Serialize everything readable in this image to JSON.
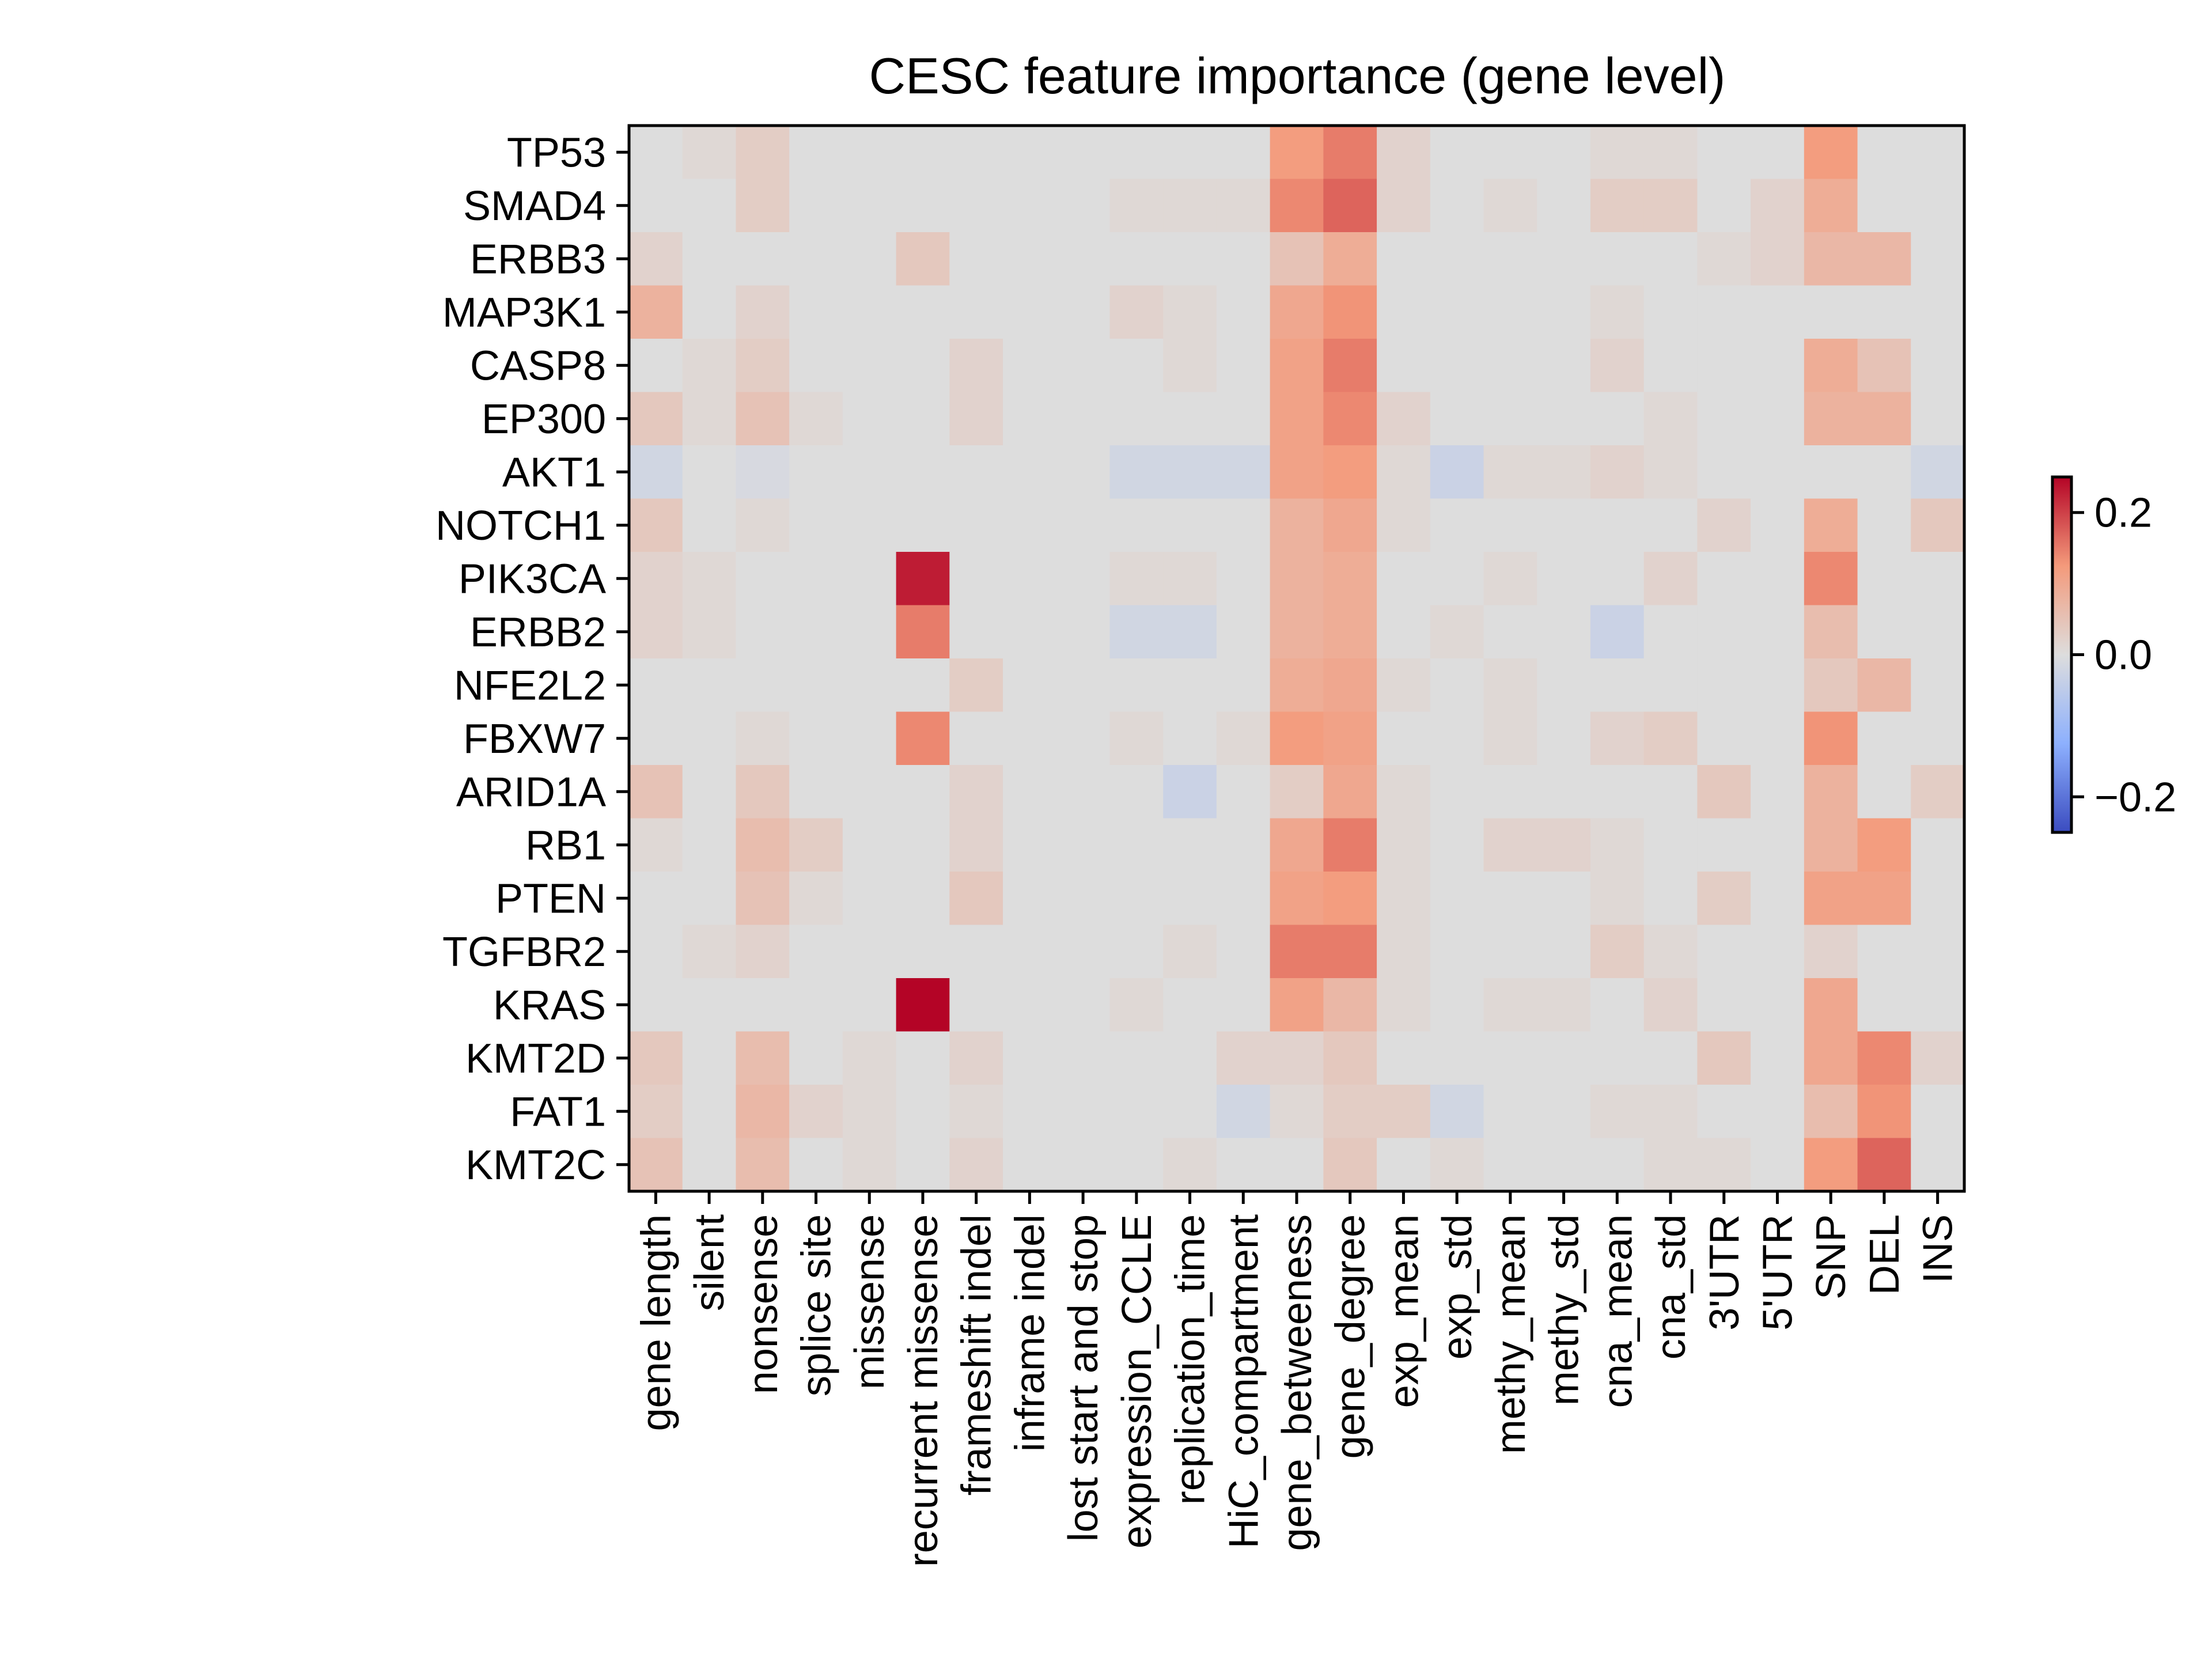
{
  "chart_data": {
    "type": "heatmap",
    "title": "CESC feature importance (gene level)",
    "xlabel": "",
    "ylabel": "",
    "x_categories": [
      "gene length",
      "silent",
      "nonsense",
      "splice site",
      "missense",
      "recurrent missense",
      "frameshift indel",
      "inframe indel",
      "lost start and stop",
      "expression_CCLE",
      "replication_time",
      "HiC_compartment",
      "gene_betweeness",
      "gene_degree",
      "exp_mean",
      "exp_std",
      "methy_mean",
      "methy_std",
      "cna_mean",
      "cna_std",
      "3'UTR",
      "5'UTR",
      "SNP",
      "DEL",
      "INS"
    ],
    "y_categories": [
      "TP53",
      "SMAD4",
      "ERBB3",
      "MAP3K1",
      "CASP8",
      "EP300",
      "AKT1",
      "NOTCH1",
      "PIK3CA",
      "ERBB2",
      "NFE2L2",
      "FBXW7",
      "ARID1A",
      "RB1",
      "PTEN",
      "TGFBR2",
      "KRAS",
      "KMT2D",
      "FAT1",
      "KMT2C"
    ],
    "values": [
      [
        0.0,
        0.01,
        0.03,
        0.0,
        0.0,
        0.0,
        0.0,
        0.0,
        0.0,
        0.0,
        0.0,
        0.0,
        0.12,
        0.15,
        0.02,
        0.0,
        0.0,
        0.0,
        0.01,
        0.01,
        0.0,
        0.0,
        0.12,
        0.0,
        0.0
      ],
      [
        0.0,
        0.0,
        0.03,
        0.0,
        0.0,
        0.0,
        0.0,
        0.0,
        0.0,
        0.01,
        0.01,
        0.01,
        0.14,
        0.17,
        0.02,
        0.0,
        0.01,
        0.0,
        0.03,
        0.03,
        0.0,
        0.02,
        0.09,
        0.0,
        0.0
      ],
      [
        0.02,
        0.0,
        0.0,
        0.0,
        0.0,
        0.04,
        0.0,
        0.0,
        0.0,
        0.0,
        0.0,
        0.0,
        0.05,
        0.09,
        0.0,
        0.0,
        0.0,
        0.0,
        0.0,
        0.0,
        0.01,
        0.02,
        0.07,
        0.07,
        0.0
      ],
      [
        0.08,
        0.0,
        0.02,
        0.0,
        0.0,
        0.0,
        0.0,
        0.0,
        0.0,
        0.02,
        0.01,
        0.0,
        0.1,
        0.13,
        0.0,
        0.0,
        0.0,
        0.0,
        0.01,
        0.0,
        0.0,
        0.0,
        0.0,
        0.0,
        0.0
      ],
      [
        0.0,
        0.01,
        0.03,
        0.0,
        0.0,
        0.0,
        0.02,
        0.0,
        0.0,
        0.0,
        0.01,
        0.0,
        0.11,
        0.15,
        0.0,
        0.0,
        0.0,
        0.0,
        0.02,
        0.0,
        0.0,
        0.0,
        0.09,
        0.05,
        0.0
      ],
      [
        0.04,
        0.01,
        0.05,
        0.01,
        0.0,
        0.0,
        0.02,
        0.0,
        0.0,
        0.0,
        0.0,
        0.0,
        0.11,
        0.14,
        0.02,
        0.0,
        0.0,
        0.0,
        0.0,
        0.01,
        0.0,
        0.0,
        0.08,
        0.08,
        0.0
      ],
      [
        -0.02,
        0.0,
        -0.01,
        0.0,
        0.0,
        0.0,
        0.0,
        0.0,
        0.0,
        -0.02,
        -0.02,
        -0.02,
        0.11,
        0.12,
        0.01,
        -0.03,
        0.01,
        0.01,
        0.02,
        0.01,
        0.0,
        0.0,
        0.0,
        0.0,
        -0.02
      ],
      [
        0.04,
        0.0,
        0.01,
        0.0,
        0.0,
        0.0,
        0.0,
        0.0,
        0.0,
        0.0,
        0.0,
        0.0,
        0.08,
        0.1,
        0.01,
        0.0,
        0.0,
        0.0,
        0.0,
        0.0,
        0.02,
        0.0,
        0.09,
        0.0,
        0.04
      ],
      [
        0.02,
        0.01,
        0.0,
        0.0,
        0.0,
        0.23,
        0.0,
        0.0,
        0.0,
        0.01,
        0.01,
        0.0,
        0.08,
        0.09,
        0.0,
        0.0,
        0.01,
        0.0,
        0.0,
        0.02,
        0.0,
        0.0,
        0.14,
        0.0,
        0.0
      ],
      [
        0.02,
        0.01,
        0.0,
        0.0,
        0.0,
        0.15,
        0.0,
        0.0,
        0.0,
        -0.02,
        -0.02,
        0.0,
        0.08,
        0.09,
        0.0,
        0.01,
        0.0,
        0.0,
        -0.03,
        0.0,
        0.0,
        0.0,
        0.06,
        0.0,
        0.0
      ],
      [
        0.0,
        0.0,
        0.0,
        0.0,
        0.0,
        0.0,
        0.03,
        0.0,
        0.0,
        0.0,
        0.0,
        0.0,
        0.09,
        0.1,
        0.01,
        0.0,
        0.01,
        0.0,
        0.0,
        0.0,
        0.0,
        0.0,
        0.04,
        0.07,
        0.0
      ],
      [
        0.0,
        0.0,
        0.01,
        0.0,
        0.0,
        0.14,
        0.0,
        0.0,
        0.0,
        0.01,
        0.0,
        0.01,
        0.12,
        0.11,
        0.0,
        0.0,
        0.01,
        0.0,
        0.02,
        0.03,
        0.0,
        0.0,
        0.13,
        0.0,
        0.0
      ],
      [
        0.05,
        0.0,
        0.04,
        0.0,
        0.0,
        0.0,
        0.02,
        0.0,
        0.0,
        0.0,
        -0.03,
        0.0,
        0.03,
        0.1,
        0.01,
        0.0,
        0.0,
        0.0,
        0.0,
        0.0,
        0.04,
        0.0,
        0.08,
        0.0,
        0.03
      ],
      [
        0.01,
        0.0,
        0.06,
        0.03,
        0.0,
        0.0,
        0.02,
        0.0,
        0.0,
        0.0,
        0.0,
        0.0,
        0.1,
        0.15,
        0.01,
        0.0,
        0.02,
        0.02,
        0.01,
        0.0,
        0.0,
        0.0,
        0.08,
        0.12,
        0.0
      ],
      [
        0.0,
        0.0,
        0.05,
        0.01,
        0.0,
        0.0,
        0.04,
        0.0,
        0.0,
        0.0,
        0.0,
        0.0,
        0.11,
        0.12,
        0.01,
        0.0,
        0.0,
        0.0,
        0.01,
        0.0,
        0.03,
        0.0,
        0.11,
        0.11,
        0.0
      ],
      [
        0.0,
        0.01,
        0.02,
        0.0,
        0.0,
        0.0,
        0.0,
        0.0,
        0.0,
        0.0,
        0.01,
        0.0,
        0.15,
        0.15,
        0.01,
        0.0,
        0.0,
        0.0,
        0.03,
        0.01,
        0.0,
        0.0,
        0.02,
        0.0,
        0.0
      ],
      [
        0.0,
        0.0,
        0.0,
        0.0,
        0.0,
        0.25,
        0.0,
        0.0,
        0.0,
        0.01,
        0.0,
        0.0,
        0.11,
        0.07,
        0.01,
        0.0,
        0.01,
        0.01,
        0.0,
        0.02,
        0.0,
        0.0,
        0.1,
        0.0,
        0.0
      ],
      [
        0.04,
        0.0,
        0.06,
        0.0,
        0.01,
        0.0,
        0.02,
        0.0,
        0.0,
        0.0,
        0.0,
        0.02,
        0.02,
        0.04,
        0.0,
        0.0,
        0.0,
        0.0,
        0.0,
        0.0,
        0.04,
        0.0,
        0.1,
        0.14,
        0.02
      ],
      [
        0.03,
        0.0,
        0.07,
        0.02,
        0.01,
        0.0,
        0.01,
        0.0,
        0.0,
        0.0,
        0.0,
        -0.02,
        0.01,
        0.03,
        0.03,
        -0.02,
        0.0,
        0.0,
        0.01,
        0.01,
        0.0,
        0.0,
        0.06,
        0.13,
        0.0
      ],
      [
        0.05,
        0.0,
        0.06,
        0.0,
        0.01,
        0.0,
        0.02,
        0.0,
        0.0,
        0.0,
        0.01,
        0.0,
        0.0,
        0.04,
        0.0,
        0.01,
        0.0,
        0.0,
        0.0,
        0.01,
        0.01,
        0.0,
        0.12,
        0.17,
        0.0
      ]
    ],
    "vmin": -0.25,
    "vmax": 0.25,
    "colormap": "coolwarm",
    "colorbar": {
      "ticks": [
        0.2,
        0.0,
        -0.2
      ],
      "tick_labels": [
        "0.2",
        "0.0",
        "−0.2"
      ]
    },
    "grid": false,
    "legend": "colorbar-right"
  }
}
